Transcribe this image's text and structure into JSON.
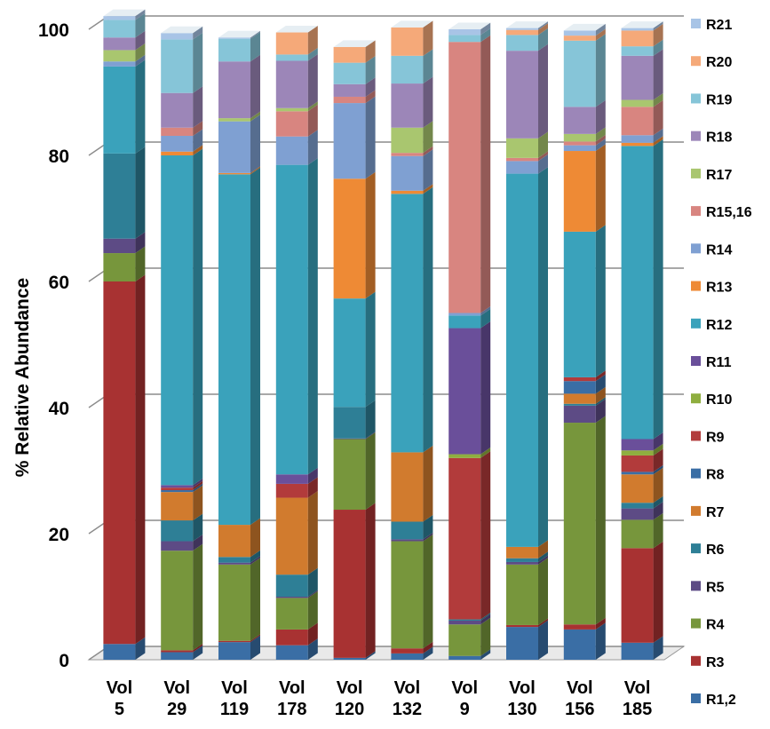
{
  "chart_data": {
    "type": "bar",
    "stacked": true,
    "three_d": true,
    "ylabel": "% Relative Abundance",
    "xlabel": "",
    "ylim": [
      0,
      100
    ],
    "yticks": [
      0,
      20,
      40,
      60,
      80,
      100
    ],
    "grid": true,
    "legend_position": "right",
    "categories": [
      [
        "Vol",
        "5"
      ],
      [
        "Vol",
        "29"
      ],
      [
        "Vol",
        "119"
      ],
      [
        "Vol",
        "178"
      ],
      [
        "Vol",
        "120"
      ],
      [
        "Vol",
        "132"
      ],
      [
        "Vol",
        "9"
      ],
      [
        "Vol",
        "130"
      ],
      [
        "Vol",
        "156"
      ],
      [
        "Vol",
        "185"
      ]
    ],
    "series": [
      {
        "name": "R1,2",
        "color": "#3a6ea5",
        "values": [
          2.5,
          1.2,
          2.8,
          2.3,
          0.3,
          1.0,
          0.6,
          5.2,
          4.8,
          2.7
        ]
      },
      {
        "name": "R3",
        "color": "#a83232",
        "values": [
          57.5,
          0.3,
          0.2,
          2.5,
          23.5,
          0.8,
          0.0,
          0.3,
          0.8,
          15.0
        ]
      },
      {
        "name": "R4",
        "color": "#77963c",
        "values": [
          4.5,
          15.8,
          12.1,
          5.0,
          11.2,
          17.0,
          5.0,
          9.6,
          32.0,
          4.5
        ]
      },
      {
        "name": "R5",
        "color": "#5d4b85",
        "values": [
          2.3,
          1.5,
          0.3,
          0.2,
          0.1,
          0.3,
          0.6,
          0.4,
          2.7,
          1.8
        ]
      },
      {
        "name": "R6",
        "color": "#2e7f96",
        "values": [
          13.5,
          3.3,
          0.9,
          3.5,
          5.0,
          2.8,
          0.2,
          0.6,
          0.3,
          0.9
        ]
      },
      {
        "name": "R7",
        "color": "#d17b2e",
        "values": [
          0.0,
          4.5,
          5.1,
          12.2,
          0.0,
          11.0,
          0.0,
          1.8,
          1.6,
          4.5
        ]
      },
      {
        "name": "R8",
        "color": "#3a6ea5",
        "values": [
          0.0,
          0.3,
          0.0,
          0.0,
          0.0,
          0.0,
          0.0,
          0.0,
          2.0,
          0.4
        ]
      },
      {
        "name": "R9",
        "color": "#b23b3b",
        "values": [
          0.0,
          0.4,
          0.0,
          2.2,
          0.0,
          0.0,
          25.6,
          0.0,
          0.6,
          2.6
        ]
      },
      {
        "name": "R10",
        "color": "#8fae3f",
        "values": [
          0.0,
          0.0,
          0.0,
          0.0,
          0.0,
          0.0,
          0.6,
          0.0,
          0.0,
          0.8
        ]
      },
      {
        "name": "R11",
        "color": "#6a4f9a",
        "values": [
          0.0,
          0.4,
          0.0,
          1.5,
          0.0,
          0.0,
          20.0,
          0.0,
          0.0,
          1.8
        ]
      },
      {
        "name": "R12",
        "color": "#3aa2bb",
        "values": [
          13.8,
          52.3,
          55.6,
          49.1,
          17.2,
          41.0,
          2.0,
          59.2,
          23.1,
          46.5
        ]
      },
      {
        "name": "R13",
        "color": "#ee8a35",
        "values": [
          0.0,
          0.6,
          0.2,
          0.0,
          19.0,
          0.5,
          0.0,
          0.0,
          12.8,
          0.5
        ]
      },
      {
        "name": "R14",
        "color": "#7fa0d2",
        "values": [
          0.8,
          2.5,
          8.2,
          4.5,
          12.0,
          5.5,
          0.4,
          2.0,
          0.9,
          1.2
        ]
      },
      {
        "name": "R15,16",
        "color": "#d88580",
        "values": [
          0.0,
          1.3,
          0.0,
          4.0,
          1.0,
          0.5,
          43.0,
          0.5,
          0.6,
          4.5
        ]
      },
      {
        "name": "R17",
        "color": "#a9c66f",
        "values": [
          1.8,
          0.0,
          0.5,
          0.5,
          0.0,
          4.0,
          0.0,
          3.1,
          1.2,
          1.1
        ]
      },
      {
        "name": "R18",
        "color": "#9c86b8",
        "values": [
          2.0,
          5.5,
          9.0,
          7.5,
          2.0,
          7.0,
          0.0,
          13.9,
          4.3,
          7.0
        ]
      },
      {
        "name": "R19",
        "color": "#86c5d8",
        "values": [
          2.8,
          8.5,
          3.6,
          1.0,
          3.4,
          4.4,
          1.1,
          2.5,
          10.5,
          1.5
        ]
      },
      {
        "name": "R20",
        "color": "#f5a979",
        "values": [
          0.0,
          0.0,
          0.0,
          3.5,
          2.5,
          4.5,
          0.0,
          0.8,
          0.8,
          2.5
        ]
      },
      {
        "name": "R21",
        "color": "#a8c4e6",
        "values": [
          0.6,
          1.0,
          0.2,
          0.0,
          0.0,
          0.0,
          0.9,
          0.3,
          0.8,
          0.4
        ]
      }
    ]
  }
}
